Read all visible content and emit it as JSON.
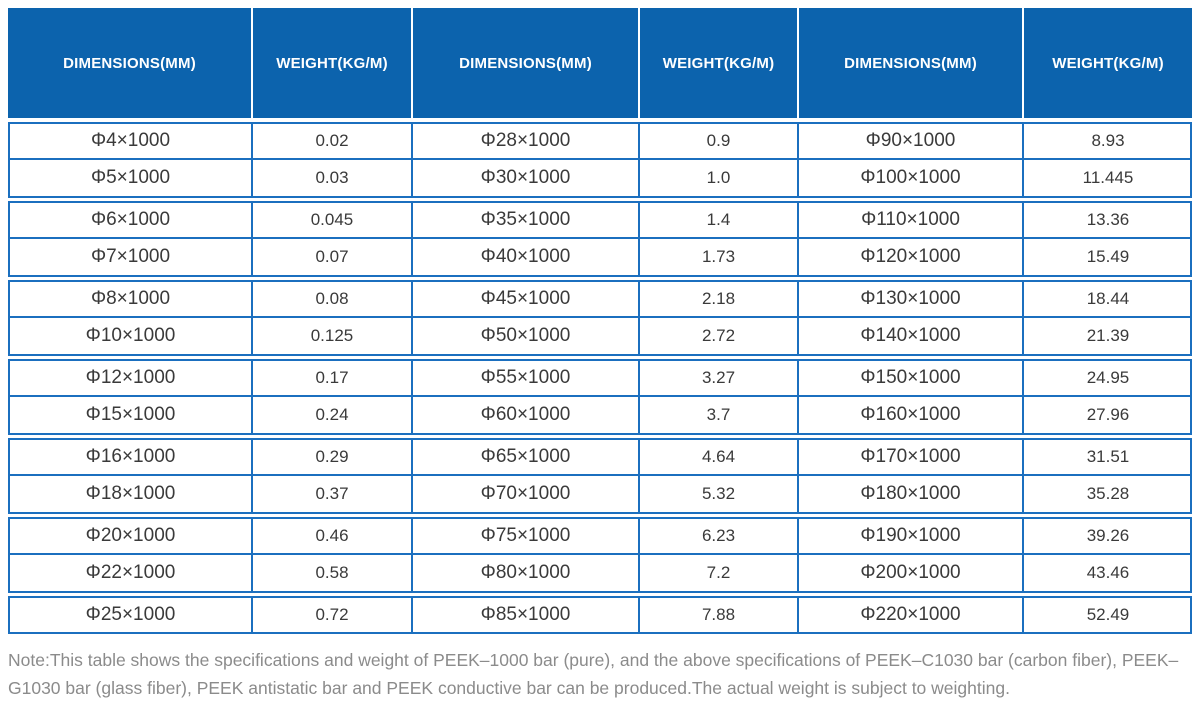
{
  "header": {
    "columns": [
      "DIMENSIONS(MM)",
      "WEIGHT(KG/M)",
      "DIMENSIONS(MM)",
      "WEIGHT(KG/M)",
      "DIMENSIONS(MM)",
      "WEIGHT(KG/M)"
    ]
  },
  "table": {
    "rows": [
      [
        "Φ4×1000",
        "0.02",
        "Φ28×1000",
        "0.9",
        "Φ90×1000",
        "8.93"
      ],
      [
        "Φ5×1000",
        "0.03",
        "Φ30×1000",
        "1.0",
        "Φ100×1000",
        "11.445"
      ],
      [
        "Φ6×1000",
        "0.045",
        "Φ35×1000",
        "1.4",
        "Φ110×1000",
        "13.36"
      ],
      [
        "Φ7×1000",
        "0.07",
        "Φ40×1000",
        "1.73",
        "Φ120×1000",
        "15.49"
      ],
      [
        "Φ8×1000",
        "0.08",
        "Φ45×1000",
        "2.18",
        "Φ130×1000",
        "18.44"
      ],
      [
        "Φ10×1000",
        "0.125",
        "Φ50×1000",
        "2.72",
        "Φ140×1000",
        "21.39"
      ],
      [
        "Φ12×1000",
        "0.17",
        "Φ55×1000",
        "3.27",
        "Φ150×1000",
        "24.95"
      ],
      [
        "Φ15×1000",
        "0.24",
        "Φ60×1000",
        "3.7",
        "Φ160×1000",
        "27.96"
      ],
      [
        "Φ16×1000",
        "0.29",
        "Φ65×1000",
        "4.64",
        "Φ170×1000",
        "31.51"
      ],
      [
        "Φ18×1000",
        "0.37",
        "Φ70×1000",
        "5.32",
        "Φ180×1000",
        "35.28"
      ],
      [
        "Φ20×1000",
        "0.46",
        "Φ75×1000",
        "6.23",
        "Φ190×1000",
        "39.26"
      ],
      [
        "Φ22×1000",
        "0.58",
        "Φ80×1000",
        "7.2",
        "Φ200×1000",
        "43.46"
      ],
      [
        "Φ25×1000",
        "0.72",
        "Φ85×1000",
        "7.88",
        "Φ220×1000",
        "52.49"
      ]
    ]
  },
  "note": "Note:This table shows the specifications and weight of PEEK–1000 bar (pure), and the above specifications of PEEK–C1030 bar (carbon fiber), PEEK–G1030 bar (glass fiber), PEEK antistatic bar and PEEK conductive bar can be produced.The actual weight is subject to weighting.",
  "colors": {
    "header_bg": "#0c63ad",
    "grid_line": "#1b6fbf",
    "cell_text": "#3a3a3a",
    "note_text": "#8b8b8b"
  }
}
